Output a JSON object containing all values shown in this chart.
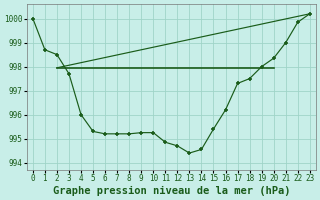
{
  "title": "Graphe pression niveau de la mer (hPa)",
  "bg_color": "#c8eee8",
  "grid_color": "#a0d4c8",
  "line_color": "#1a5c1a",
  "xlim": [
    -0.5,
    23.5
  ],
  "ylim": [
    993.7,
    1000.6
  ],
  "yticks": [
    994,
    995,
    996,
    997,
    998,
    999,
    1000
  ],
  "xticks": [
    0,
    1,
    2,
    3,
    4,
    5,
    6,
    7,
    8,
    9,
    10,
    11,
    12,
    13,
    14,
    15,
    16,
    17,
    18,
    19,
    20,
    21,
    22,
    23
  ],
  "series_curved": [
    1000.0,
    998.7,
    998.5,
    997.7,
    996.0,
    995.3,
    995.2,
    995.2,
    995.2,
    995.25,
    995.25,
    994.85,
    994.7,
    994.4,
    994.55,
    995.4,
    996.2,
    997.3,
    997.5,
    998.0,
    998.35,
    999.0,
    999.85,
    1000.2
  ],
  "flat_line_x": [
    2,
    20
  ],
  "flat_line_y": [
    997.95,
    997.95
  ],
  "diag_line_x": [
    2,
    23
  ],
  "diag_line_y": [
    997.95,
    1000.2
  ],
  "title_fontsize": 7.5,
  "tick_fontsize": 5.5
}
